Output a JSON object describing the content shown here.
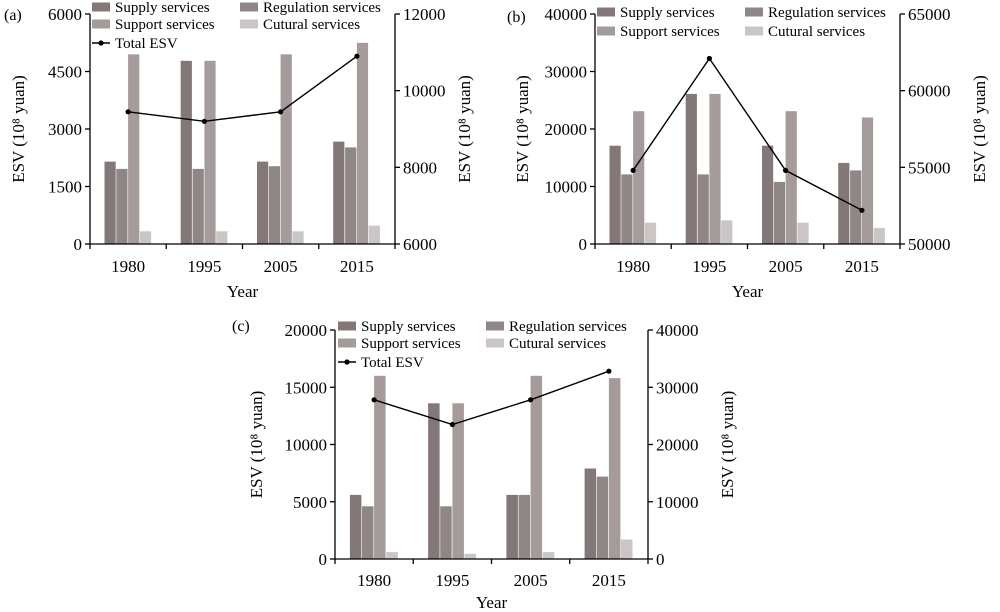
{
  "colors": {
    "supply": "#847777",
    "regulation": "#8f8787",
    "support": "#a59b9b",
    "cultural": "#cbc5c5",
    "total_line": "#000000",
    "axis": "#000000"
  },
  "chart_data": [
    {
      "type": "bar+line",
      "panel_label": "(a)",
      "categories": [
        "1980",
        "1995",
        "2005",
        "2015"
      ],
      "series": [
        {
          "name": "Supply services",
          "key": "supply",
          "axis": "left",
          "values": [
            2150,
            4780,
            2150,
            2670
          ]
        },
        {
          "name": "Regulation services",
          "key": "regulation",
          "axis": "left",
          "values": [
            1960,
            1960,
            2030,
            2520
          ]
        },
        {
          "name": "Support services",
          "key": "support",
          "axis": "left",
          "values": [
            4950,
            4780,
            4950,
            5250
          ]
        },
        {
          "name": "Cutural services",
          "key": "cultural",
          "axis": "left",
          "values": [
            330,
            330,
            330,
            480
          ]
        },
        {
          "name": "Total ESV",
          "key": "total_line",
          "axis": "right",
          "type": "line",
          "values": [
            9450,
            9200,
            9450,
            10900
          ]
        }
      ],
      "ylabel_left": "ESV (10⁸ yuan)",
      "ylabel_right": "ESV (10⁸ yuan)",
      "xlabel": "Year",
      "ylim_left": [
        0,
        6000
      ],
      "yticks_left": [
        "0",
        "1500",
        "3000",
        "4500",
        "6000"
      ],
      "ylim_right": [
        6000,
        12000
      ],
      "yticks_right": [
        "6000",
        "8000",
        "10000",
        "12000"
      ],
      "legend_position": "top"
    },
    {
      "type": "bar+line",
      "panel_label": "(b)",
      "categories": [
        "1980",
        "1995",
        "2005",
        "2015"
      ],
      "series": [
        {
          "name": "Supply services",
          "key": "supply",
          "axis": "left",
          "values": [
            17100,
            26100,
            17100,
            14100
          ]
        },
        {
          "name": "Regulation services",
          "key": "regulation",
          "axis": "left",
          "values": [
            12100,
            12100,
            10800,
            12800
          ]
        },
        {
          "name": "Support services",
          "key": "support",
          "axis": "left",
          "values": [
            23100,
            26100,
            23100,
            22000
          ]
        },
        {
          "name": "Cutural services",
          "key": "cultural",
          "axis": "left",
          "values": [
            3700,
            4100,
            3700,
            2800
          ]
        }
      ],
      "line_series": {
        "name": "Total ESV",
        "key": "total_line",
        "axis": "right",
        "values": [
          54800,
          62100,
          54800,
          52200
        ],
        "show_in_legend": false
      },
      "ylabel_left": "ESV (10⁸ yuan)",
      "ylabel_right": "ESV (10⁸ yuan)",
      "xlabel": "Year",
      "ylim_left": [
        0,
        40000
      ],
      "yticks_left": [
        "0",
        "10000",
        "20000",
        "30000",
        "40000"
      ],
      "ylim_right": [
        50000,
        65000
      ],
      "yticks_right": [
        "50000",
        "55000",
        "60000",
        "65000"
      ],
      "legend_position": "top"
    },
    {
      "type": "bar+line",
      "panel_label": "(c)",
      "categories": [
        "1980",
        "1995",
        "2005",
        "2015"
      ],
      "series": [
        {
          "name": "Supply services",
          "key": "supply",
          "axis": "left",
          "values": [
            5600,
            13600,
            5600,
            7900
          ]
        },
        {
          "name": "Regulation services",
          "key": "regulation",
          "axis": "left",
          "values": [
            4600,
            4600,
            5600,
            7200
          ]
        },
        {
          "name": "Support services",
          "key": "support",
          "axis": "left",
          "values": [
            16000,
            13600,
            16000,
            15800
          ]
        },
        {
          "name": "Cutural services",
          "key": "cultural",
          "axis": "left",
          "values": [
            600,
            450,
            600,
            1700
          ]
        },
        {
          "name": "Total ESV",
          "key": "total_line",
          "axis": "right",
          "type": "line",
          "values": [
            27800,
            23500,
            27800,
            32800
          ]
        }
      ],
      "ylabel_left": "ESV (10⁸ yuan)",
      "ylabel_right": "ESV (10⁸ yuan)",
      "xlabel": "Year",
      "ylim_left": [
        0,
        20000
      ],
      "yticks_left": [
        "0",
        "5000",
        "10000",
        "15000",
        "20000"
      ],
      "ylim_right": [
        0,
        40000
      ],
      "yticks_right": [
        "0",
        "10000",
        "20000",
        "30000",
        "40000"
      ],
      "legend_position": "top"
    }
  ]
}
